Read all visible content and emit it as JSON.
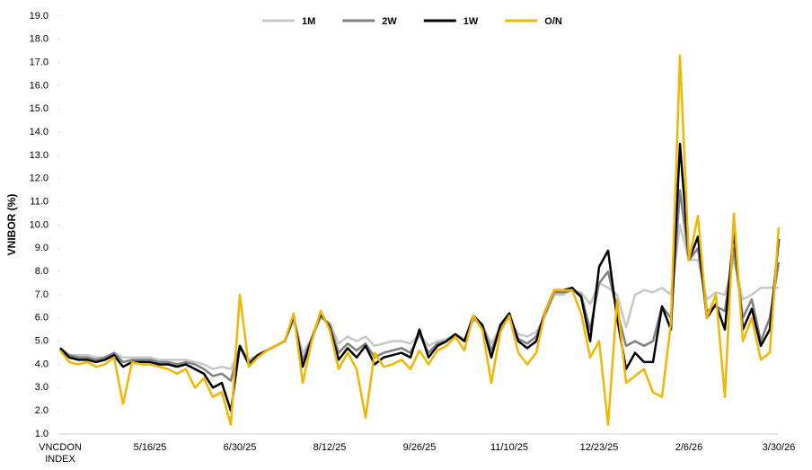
{
  "chart_data": {
    "type": "line",
    "ylabel": "VNIBOR (%)",
    "categories": [
      "VNCDON INDEX",
      null,
      null,
      null,
      null,
      null,
      null,
      null,
      null,
      null,
      "5/16/25",
      null,
      null,
      null,
      null,
      null,
      null,
      null,
      null,
      null,
      "6/30/25",
      null,
      null,
      null,
      null,
      null,
      null,
      null,
      null,
      null,
      "8/12/25",
      null,
      null,
      null,
      null,
      null,
      null,
      null,
      null,
      null,
      "9/26/25",
      null,
      null,
      null,
      null,
      null,
      null,
      null,
      null,
      null,
      "11/10/25",
      null,
      null,
      null,
      null,
      null,
      null,
      null,
      null,
      null,
      "12/23/25",
      null,
      null,
      null,
      null,
      null,
      null,
      null,
      null,
      null,
      "2/6/26",
      null,
      null,
      null,
      null,
      null,
      null,
      null,
      null,
      null,
      "3/30/26"
    ],
    "series": [
      {
        "name": "1M",
        "color": "#c8c8c8",
        "values": [
          4.7,
          4.4,
          4.4,
          4.4,
          4.3,
          4.3,
          4.5,
          4.3,
          4.3,
          4.3,
          4.3,
          4.2,
          4.2,
          4.2,
          4.2,
          4.1,
          4.0,
          3.8,
          3.9,
          3.8,
          4.7,
          4.2,
          4.4,
          4.6,
          4.8,
          5.0,
          5.9,
          4.5,
          5.1,
          6.0,
          5.8,
          4.9,
          5.2,
          5.0,
          5.2,
          4.8,
          4.9,
          5.0,
          5.0,
          4.9,
          5.3,
          4.8,
          5.0,
          5.1,
          5.3,
          5.1,
          5.9,
          5.7,
          4.9,
          5.6,
          6.0,
          5.3,
          5.2,
          5.4,
          6.1,
          7.0,
          7.0,
          7.2,
          7.1,
          6.6,
          7.5,
          7.3,
          7.0,
          5.6,
          7.0,
          7.2,
          7.1,
          7.3,
          7.0,
          10.0,
          8.5,
          8.5,
          6.8,
          7.1,
          7.0,
          8.5,
          6.8,
          7.0,
          7.3,
          7.3,
          7.3
        ]
      },
      {
        "name": "2W",
        "color": "#808080",
        "values": [
          4.7,
          4.4,
          4.3,
          4.3,
          4.2,
          4.3,
          4.5,
          4.1,
          4.2,
          4.2,
          4.2,
          4.1,
          4.1,
          4.0,
          4.1,
          4.0,
          3.8,
          3.5,
          3.6,
          3.3,
          4.8,
          4.1,
          4.4,
          4.6,
          4.8,
          5.0,
          6.0,
          4.2,
          5.1,
          6.1,
          5.7,
          4.5,
          4.9,
          4.6,
          4.9,
          4.3,
          4.5,
          4.6,
          4.7,
          4.5,
          5.3,
          4.5,
          4.9,
          5.0,
          5.3,
          5.0,
          6.0,
          5.7,
          4.6,
          5.6,
          6.1,
          5.1,
          4.9,
          5.2,
          6.2,
          7.1,
          7.1,
          7.2,
          7.0,
          5.5,
          7.5,
          8.0,
          6.3,
          4.8,
          5.0,
          4.8,
          5.0,
          6.5,
          6.0,
          11.5,
          8.5,
          9.0,
          6.3,
          6.5,
          6.3,
          9.0,
          6.0,
          6.8,
          5.0,
          6.0,
          8.4
        ]
      },
      {
        "name": "1W",
        "color": "#000000",
        "values": [
          4.7,
          4.3,
          4.2,
          4.2,
          4.1,
          4.2,
          4.4,
          3.9,
          4.1,
          4.1,
          4.1,
          4.0,
          4.0,
          3.9,
          4.0,
          3.8,
          3.6,
          3.0,
          3.2,
          2.0,
          4.8,
          4.0,
          4.4,
          4.6,
          4.8,
          5.0,
          6.1,
          3.9,
          5.1,
          6.2,
          5.6,
          4.2,
          4.7,
          4.3,
          4.8,
          4.0,
          4.3,
          4.4,
          4.5,
          4.3,
          5.5,
          4.3,
          4.8,
          5.0,
          5.3,
          5.0,
          6.1,
          5.7,
          4.3,
          5.7,
          6.2,
          5.0,
          4.7,
          5.0,
          6.3,
          7.2,
          7.2,
          7.3,
          6.9,
          5.0,
          8.2,
          8.9,
          6.0,
          3.8,
          4.5,
          4.1,
          4.1,
          6.5,
          5.5,
          13.5,
          8.5,
          9.5,
          6.0,
          6.6,
          5.5,
          9.8,
          5.5,
          6.4,
          4.8,
          5.5,
          9.4
        ]
      },
      {
        "name": "O/N",
        "color": "#f2b600",
        "values": [
          4.6,
          4.1,
          4.0,
          4.1,
          3.9,
          4.0,
          4.3,
          2.3,
          4.1,
          4.0,
          4.0,
          3.9,
          3.8,
          3.6,
          3.8,
          3.0,
          3.4,
          2.6,
          2.8,
          1.4,
          7.0,
          3.9,
          4.3,
          4.6,
          4.8,
          5.0,
          6.2,
          3.2,
          5.0,
          6.3,
          5.5,
          3.8,
          4.5,
          3.8,
          1.7,
          4.5,
          3.9,
          4.0,
          4.2,
          3.8,
          4.6,
          4.0,
          4.6,
          4.8,
          5.2,
          4.6,
          6.1,
          5.5,
          3.2,
          5.4,
          6.1,
          4.5,
          4.0,
          4.5,
          6.3,
          7.2,
          7.2,
          7.2,
          6.2,
          4.3,
          5.0,
          1.4,
          6.8,
          3.2,
          3.5,
          3.8,
          2.8,
          2.6,
          5.8,
          17.3,
          8.5,
          10.4,
          6.0,
          7.0,
          2.6,
          10.5,
          5.0,
          6.0,
          4.2,
          4.5,
          9.9
        ]
      }
    ],
    "ylim": [
      1.0,
      19.0
    ],
    "yticks": [
      {
        "value": 1,
        "label": "1.0"
      },
      {
        "value": 2,
        "label": "2.0"
      },
      {
        "value": 3,
        "label": "3.0"
      },
      {
        "value": 4,
        "label": "4.0"
      },
      {
        "value": 5,
        "label": "5.0"
      },
      {
        "value": 6,
        "label": "6.0"
      },
      {
        "value": 7,
        "label": "7.0"
      },
      {
        "value": 8,
        "label": "8.0"
      },
      {
        "value": 9,
        "label": "9.0"
      },
      {
        "value": 10,
        "label": "10.0"
      },
      {
        "value": 11,
        "label": "11.0"
      },
      {
        "value": 12,
        "label": "12.0"
      },
      {
        "value": 13,
        "label": "13.0"
      },
      {
        "value": 14,
        "label": "14.0"
      },
      {
        "value": 15,
        "label": "15.0"
      },
      {
        "value": 16,
        "label": "16.0"
      },
      {
        "value": 17,
        "label": "17.0"
      },
      {
        "value": 18,
        "label": "18.0"
      },
      {
        "value": 19,
        "label": "19.0"
      }
    ],
    "grid": false,
    "legend": "top"
  }
}
